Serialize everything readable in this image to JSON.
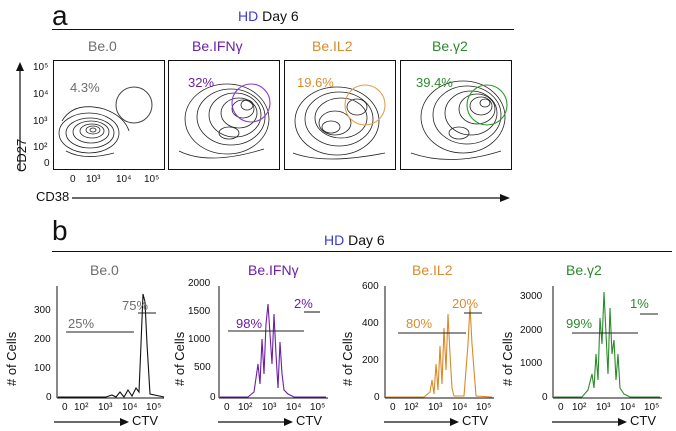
{
  "figure": {
    "panel_a": {
      "letter": "a",
      "header_hd": "HD",
      "header_rest": " Day 6",
      "y_title": "CD27",
      "x_title": "CD38",
      "y_ticks": [
        "10⁵",
        "10⁴",
        "10³",
        "10²",
        "0"
      ],
      "x_ticks": [
        "0",
        "10³",
        "10⁴",
        "10⁵"
      ],
      "conditions": [
        {
          "label": "Be.0",
          "pct": "4.3%",
          "color": "#6d6d6d"
        },
        {
          "label": "Be.IFNγ",
          "pct": "32%",
          "color": "#6a1fa3"
        },
        {
          "label": "Be.IL2",
          "pct": "19.6%",
          "color": "#d98a2a"
        },
        {
          "label": "Be.γ2",
          "pct": "39.4%",
          "color": "#2b8a2b"
        }
      ]
    },
    "panel_b": {
      "letter": "b",
      "header_hd": "HD",
      "header_rest": " Day 6",
      "y_title": "# of Cells",
      "x_title": "CTV",
      "x_ticks": [
        "0",
        "10²",
        "10³",
        "10⁴",
        "10⁵"
      ],
      "histograms": [
        {
          "label": "Be.0",
          "color": "#6d6d6d",
          "line_color": "#111111",
          "y_ticks": [
            "300",
            "200",
            "100",
            "0"
          ],
          "pct_left": "25%",
          "pct_right": "75%"
        },
        {
          "label": "Be.IFNγ",
          "color": "#6a1fa3",
          "line_color": "#6a1fa3",
          "y_ticks": [
            "2000",
            "1500",
            "1000",
            "500",
            "0"
          ],
          "pct_left": "98%",
          "pct_right": "2%"
        },
        {
          "label": "Be.IL2",
          "color": "#d98a2a",
          "line_color": "#d98a2a",
          "y_ticks": [
            "600",
            "400",
            "200",
            "0"
          ],
          "pct_left": "80%",
          "pct_right": "20%"
        },
        {
          "label": "Be.γ2",
          "color": "#2b8a2b",
          "line_color": "#2b8a2b",
          "y_ticks": [
            "3000",
            "2000",
            "1000",
            "0"
          ],
          "pct_left": "99%",
          "pct_right": "1%"
        }
      ]
    }
  }
}
